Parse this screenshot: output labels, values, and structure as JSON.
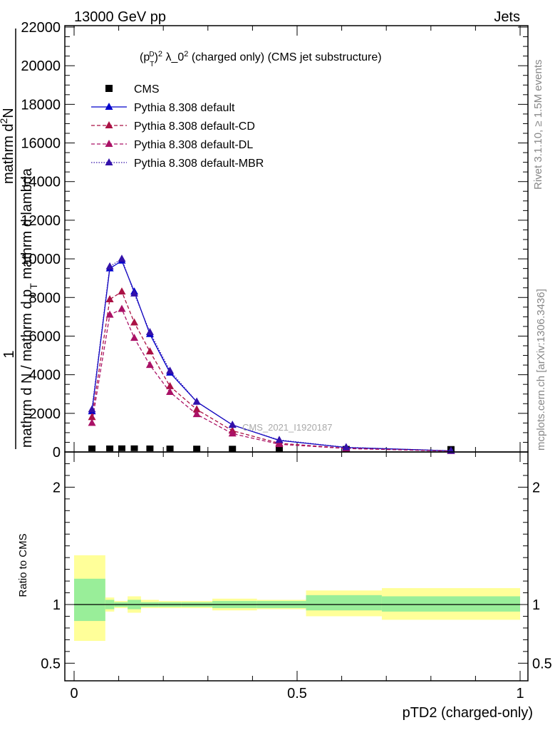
{
  "header": {
    "left": "13000 GeV pp",
    "right": "Jets"
  },
  "side_labels": {
    "rivet": "Rivet 3.1.10, ≥ 1.5M events",
    "mcplots": "mcplots.cern.ch [arXiv:1306.3436]"
  },
  "watermark": "CMS_2021_I1920187",
  "chart_data": [
    {
      "type": "line",
      "title_parts": {
        "pre": "(p",
        "sup": "D",
        "sub": "T",
        "post": ")",
        "sup2": "2",
        "mid": " λ_0",
        "sup3": "2",
        "tail": " (charged only) (CMS jet substructure)"
      },
      "ylabel_parts": {
        "one": "1",
        "denom": "mathrm d N / mathrm d p",
        "denom_sub": "T",
        "denom_tail": " mathrm d lambda",
        "numer": "mathrm d",
        "numer_sub": "2",
        "numer_tail": "N"
      },
      "ylabel_text": "mathrm d N / mathrm d p_T mathrm d lambda mathrm d^2N",
      "ylim": [
        0,
        22000
      ],
      "yticks": [
        {
          "value": 0,
          "label": "0"
        },
        {
          "value": 2000,
          "label": "2000"
        },
        {
          "value": 4000,
          "label": "4000"
        },
        {
          "value": 6000,
          "label": "6000"
        },
        {
          "value": 8000,
          "label": "8000"
        },
        {
          "value": 10000,
          "label": "10000"
        },
        {
          "value": 12000,
          "label": "12000"
        },
        {
          "value": 14000,
          "label": "14000"
        },
        {
          "value": 16000,
          "label": "16000"
        },
        {
          "value": 18000,
          "label": "18000"
        },
        {
          "value": 20000,
          "label": "20000"
        },
        {
          "value": 22000,
          "label": "22000"
        }
      ],
      "xlim": [
        0,
        1
      ],
      "legend_position": "top-left",
      "x": [
        0.04,
        0.08,
        0.107,
        0.135,
        0.17,
        0.215,
        0.275,
        0.355,
        0.46,
        0.61,
        0.845
      ],
      "series": [
        {
          "name": "CMS",
          "marker": "square",
          "color": "#000000",
          "dash": "none",
          "values": [
            40,
            40,
            45,
            45,
            40,
            35,
            30,
            25,
            20,
            15,
            10
          ]
        },
        {
          "name": "Pythia 8.308 default",
          "marker": "triangle",
          "color": "#0000cc",
          "dash": "solid",
          "values": [
            2100,
            9500,
            9900,
            8300,
            6100,
            4100,
            2600,
            1400,
            600,
            230,
            60
          ]
        },
        {
          "name": "Pythia 8.308 default-CD",
          "marker": "triangle",
          "color": "#aa1144",
          "dash": "dashed",
          "values": [
            1800,
            7900,
            8300,
            6700,
            5200,
            3400,
            2200,
            1100,
            450,
            190,
            50
          ]
        },
        {
          "name": "Pythia 8.308 default-DL",
          "marker": "triangle",
          "color": "#aa1166",
          "dash": "dashed",
          "values": [
            1500,
            7100,
            7400,
            5900,
            4500,
            3100,
            1950,
            950,
            400,
            180,
            45
          ]
        },
        {
          "name": "Pythia 8.308 default-MBR",
          "marker": "triangle",
          "color": "#3311aa",
          "dash": "dotted",
          "values": [
            2200,
            9600,
            10000,
            8200,
            6200,
            4200,
            2600,
            1400,
            620,
            240,
            60
          ]
        }
      ]
    },
    {
      "type": "area",
      "ylabel": "Ratio to CMS",
      "xlabel": "pTD2 (charged-only)",
      "xlim": [
        0,
        1
      ],
      "ylim": [
        0.35,
        2.3
      ],
      "xticks": [
        {
          "value": 0,
          "label": "0"
        },
        {
          "value": 0.5,
          "label": "0.5"
        },
        {
          "value": 1,
          "label": "1"
        }
      ],
      "yticks": [
        {
          "value": 0.5,
          "label": "0.5"
        },
        {
          "value": 1,
          "label": "1"
        },
        {
          "value": 2,
          "label": "2"
        }
      ],
      "reference": 1,
      "band_colors": {
        "inner": "#99ee99",
        "outer": "#ffff99"
      },
      "bins": [
        {
          "x0": 0.0,
          "x1": 0.07,
          "inner": [
            0.86,
            1.22
          ],
          "outer": [
            0.69,
            1.42
          ]
        },
        {
          "x0": 0.07,
          "x1": 0.09,
          "inner": [
            0.96,
            1.04
          ],
          "outer": [
            0.94,
            1.06
          ]
        },
        {
          "x0": 0.09,
          "x1": 0.12,
          "inner": [
            0.98,
            1.02
          ],
          "outer": [
            0.97,
            1.03
          ]
        },
        {
          "x0": 0.12,
          "x1": 0.15,
          "inner": [
            0.96,
            1.04
          ],
          "outer": [
            0.93,
            1.07
          ]
        },
        {
          "x0": 0.15,
          "x1": 0.19,
          "inner": [
            0.98,
            1.02
          ],
          "outer": [
            0.97,
            1.04
          ]
        },
        {
          "x0": 0.19,
          "x1": 0.24,
          "inner": [
            0.98,
            1.02
          ],
          "outer": [
            0.97,
            1.03
          ]
        },
        {
          "x0": 0.24,
          "x1": 0.31,
          "inner": [
            0.98,
            1.02
          ],
          "outer": [
            0.97,
            1.03
          ]
        },
        {
          "x0": 0.31,
          "x1": 0.41,
          "inner": [
            0.97,
            1.03
          ],
          "outer": [
            0.95,
            1.05
          ]
        },
        {
          "x0": 0.41,
          "x1": 0.52,
          "inner": [
            0.97,
            1.03
          ],
          "outer": [
            0.96,
            1.04
          ]
        },
        {
          "x0": 0.52,
          "x1": 0.69,
          "inner": [
            0.95,
            1.08
          ],
          "outer": [
            0.9,
            1.12
          ]
        },
        {
          "x0": 0.69,
          "x1": 1.0,
          "inner": [
            0.94,
            1.07
          ],
          "outer": [
            0.87,
            1.14
          ]
        }
      ]
    }
  ]
}
